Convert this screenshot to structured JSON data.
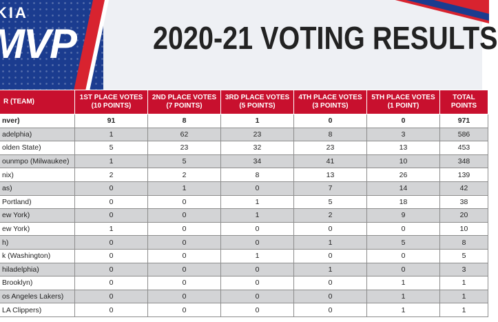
{
  "header": {
    "logo_brand": "KIA",
    "logo_text": "MVP",
    "title": "2020-21 VOTING RESULTS"
  },
  "table": {
    "columns": [
      "R (TEAM)",
      "1ST PLACE VOTES (10 POINTS)",
      "2ND PLACE VOTES (7 POINTS)",
      "3RD PLACE VOTES (5 POINTS)",
      "4TH PLACE VOTES (3 POINTS)",
      "5TH PLACE VOTES (1 POINT)",
      "TOTAL POINTS"
    ],
    "rows": [
      {
        "player": "nver)",
        "v1": "91",
        "v2": "8",
        "v3": "1",
        "v4": "0",
        "v5": "0",
        "total": "971"
      },
      {
        "player": "adelphia)",
        "v1": "1",
        "v2": "62",
        "v3": "23",
        "v4": "8",
        "v5": "3",
        "total": "586"
      },
      {
        "player": "olden State)",
        "v1": "5",
        "v2": "23",
        "v3": "32",
        "v4": "23",
        "v5": "13",
        "total": "453"
      },
      {
        "player": "ounmpo (Milwaukee)",
        "v1": "1",
        "v2": "5",
        "v3": "34",
        "v4": "41",
        "v5": "10",
        "total": "348"
      },
      {
        "player": "nix)",
        "v1": "2",
        "v2": "2",
        "v3": "8",
        "v4": "13",
        "v5": "26",
        "total": "139"
      },
      {
        "player": "as)",
        "v1": "0",
        "v2": "1",
        "v3": "0",
        "v4": "7",
        "v5": "14",
        "total": "42"
      },
      {
        "player": "Portland)",
        "v1": "0",
        "v2": "0",
        "v3": "1",
        "v4": "5",
        "v5": "18",
        "total": "38"
      },
      {
        "player": "ew York)",
        "v1": "0",
        "v2": "0",
        "v3": "1",
        "v4": "2",
        "v5": "9",
        "total": "20"
      },
      {
        "player": "ew York)",
        "v1": "1",
        "v2": "0",
        "v3": "0",
        "v4": "0",
        "v5": "0",
        "total": "10"
      },
      {
        "player": "h)",
        "v1": "0",
        "v2": "0",
        "v3": "0",
        "v4": "1",
        "v5": "5",
        "total": "8"
      },
      {
        "player": "k (Washington)",
        "v1": "0",
        "v2": "0",
        "v3": "1",
        "v4": "0",
        "v5": "0",
        "total": "5"
      },
      {
        "player": "hiladelphia)",
        "v1": "0",
        "v2": "0",
        "v3": "0",
        "v4": "1",
        "v5": "0",
        "total": "3"
      },
      {
        "player": "Brooklyn)",
        "v1": "0",
        "v2": "0",
        "v3": "0",
        "v4": "0",
        "v5": "1",
        "total": "1"
      },
      {
        "player": "os Angeles Lakers)",
        "v1": "0",
        "v2": "0",
        "v3": "0",
        "v4": "0",
        "v5": "1",
        "total": "1"
      },
      {
        "player": "LA Clippers)",
        "v1": "0",
        "v2": "0",
        "v3": "0",
        "v4": "0",
        "v5": "1",
        "total": "1"
      }
    ]
  },
  "colors": {
    "header_red": "#c8102e",
    "brand_blue": "#1b3c8f",
    "row_gray": "#d3d4d6"
  }
}
